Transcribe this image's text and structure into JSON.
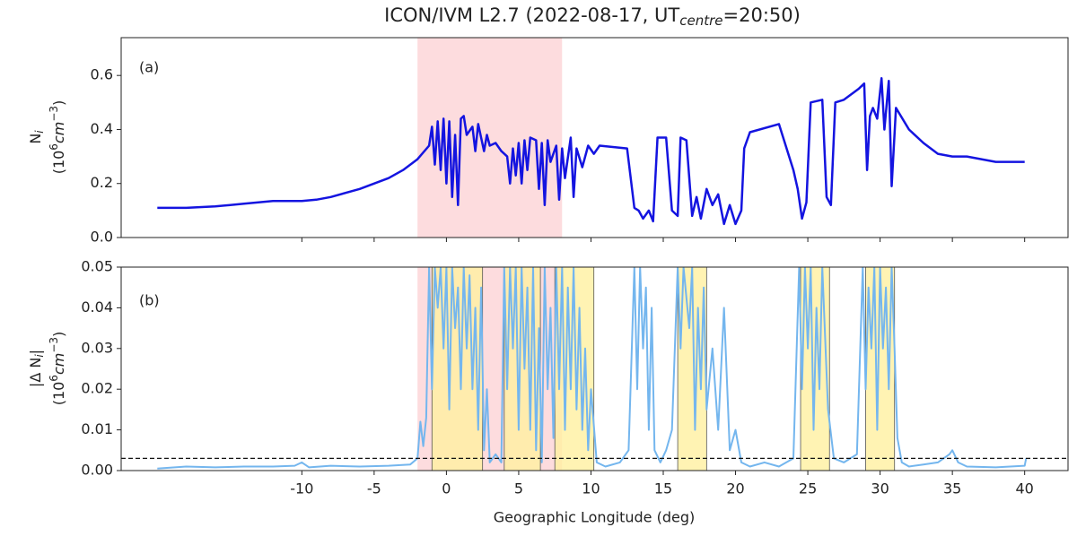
{
  "chart_data": [
    {
      "type": "line",
      "title_parts": [
        "ICON/IVM L2.7 (2022-08-17, UT",
        "centre",
        "=20:50)"
      ],
      "annotation": "(a)",
      "ylabel_parts": [
        [
          "N",
          "i"
        ],
        [
          "(10",
          "6",
          "cm",
          "−3",
          ")"
        ]
      ],
      "xlim": [
        -22.5,
        43
      ],
      "xticks": [
        -10,
        -5,
        0,
        5,
        10,
        15,
        20,
        25,
        30,
        35,
        40
      ],
      "xtick_labels": false,
      "ylim": [
        0,
        0.74
      ],
      "yticks": [
        {
          "value": 0,
          "label": "0.0"
        },
        0.2,
        0.4,
        0.6
      ],
      "highlight_spans": [
        [
          -2,
          8
        ]
      ],
      "highlight_color": "#fcc4c8",
      "color": "#1414e0",
      "x": [
        -20,
        -18,
        -16,
        -14,
        -12,
        -10,
        -9,
        -8,
        -6,
        -4,
        -3,
        -2,
        -1.2,
        -1,
        -0.8,
        -0.6,
        -0.4,
        -0.2,
        0,
        0.2,
        0.4,
        0.6,
        0.8,
        1.0,
        1.2,
        1.4,
        1.8,
        2.0,
        2.2,
        2.6,
        2.8,
        3.0,
        3.4,
        3.8,
        4.2,
        4.4,
        4.6,
        4.8,
        5.0,
        5.2,
        5.4,
        5.6,
        5.8,
        6.2,
        6.4,
        6.6,
        6.8,
        7.0,
        7.2,
        7.6,
        7.8,
        8.0,
        8.2,
        8.6,
        8.8,
        9.0,
        9.4,
        9.8,
        10.2,
        10.6,
        12.5,
        13,
        13.3,
        13.6,
        14,
        14.3,
        14.6,
        15.2,
        15.6,
        16,
        16.2,
        16.6,
        17,
        17.3,
        17.6,
        18,
        18.4,
        18.8,
        19.2,
        19.6,
        20,
        20.4,
        20.6,
        21,
        23,
        24,
        24.3,
        24.6,
        24.9,
        25.2,
        26,
        26.3,
        26.6,
        26.9,
        27.5,
        28.5,
        28.9,
        29.1,
        29.3,
        29.5,
        29.8,
        30.1,
        30.3,
        30.6,
        30.8,
        31.1,
        32,
        33,
        34,
        35,
        36,
        37,
        38,
        40
      ],
      "values": [
        0.11,
        0.11,
        0.115,
        0.125,
        0.135,
        0.135,
        0.14,
        0.15,
        0.18,
        0.22,
        0.25,
        0.29,
        0.34,
        0.41,
        0.27,
        0.43,
        0.25,
        0.44,
        0.2,
        0.43,
        0.15,
        0.38,
        0.12,
        0.44,
        0.45,
        0.38,
        0.41,
        0.32,
        0.42,
        0.32,
        0.38,
        0.34,
        0.35,
        0.32,
        0.3,
        0.2,
        0.33,
        0.23,
        0.35,
        0.2,
        0.36,
        0.25,
        0.37,
        0.36,
        0.18,
        0.35,
        0.12,
        0.36,
        0.28,
        0.34,
        0.14,
        0.33,
        0.22,
        0.37,
        0.15,
        0.33,
        0.26,
        0.34,
        0.31,
        0.34,
        0.33,
        0.11,
        0.1,
        0.07,
        0.1,
        0.06,
        0.37,
        0.37,
        0.1,
        0.08,
        0.37,
        0.36,
        0.08,
        0.15,
        0.07,
        0.18,
        0.12,
        0.16,
        0.05,
        0.12,
        0.05,
        0.1,
        0.33,
        0.39,
        0.42,
        0.25,
        0.18,
        0.07,
        0.13,
        0.5,
        0.51,
        0.15,
        0.12,
        0.5,
        0.51,
        0.55,
        0.57,
        0.25,
        0.45,
        0.48,
        0.44,
        0.59,
        0.4,
        0.58,
        0.19,
        0.48,
        0.4,
        0.35,
        0.31,
        0.3,
        0.3,
        0.29,
        0.28,
        0.28
      ]
    },
    {
      "type": "line",
      "annotation": "(b)",
      "ylabel_parts": [
        [
          "|Δ N",
          "i",
          "|"
        ],
        [
          "(10",
          "6",
          "cm",
          "−3",
          ")"
        ]
      ],
      "xlabel": "Geographic Longitude (deg)",
      "xlim": [
        -22.5,
        43
      ],
      "xticks": [
        -10,
        -5,
        0,
        5,
        10,
        15,
        20,
        25,
        30,
        35,
        40
      ],
      "xtick_labels": true,
      "ylim": [
        0,
        0.05
      ],
      "yticks": [
        {
          "value": 0,
          "label": "0.00"
        },
        {
          "value": 0.01,
          "label": "0.01"
        },
        {
          "value": 0.02,
          "label": "0.02"
        },
        {
          "value": 0.03,
          "label": "0.03"
        },
        {
          "value": 0.04,
          "label": "0.04"
        },
        {
          "value": 0.05,
          "label": "0.05"
        }
      ],
      "threshold": 0.003,
      "highlight_spans": [
        [
          -2,
          8
        ]
      ],
      "highlight_color": "#fcc4c8",
      "yellow_spans": [
        [
          -1,
          2.5
        ],
        [
          4,
          6.5
        ],
        [
          7.5,
          10.2
        ],
        [
          16,
          18
        ],
        [
          24.5,
          26.5
        ],
        [
          29,
          31
        ]
      ],
      "yellow_color": "#fff0a0",
      "color": "#74b6ee",
      "x": [
        -20,
        -18,
        -16,
        -14,
        -12,
        -10.5,
        -10,
        -9.5,
        -8,
        -6,
        -4,
        -2.5,
        -2,
        -1.8,
        -1.6,
        -1.4,
        -1.2,
        -1,
        -0.8,
        -0.6,
        -0.4,
        -0.2,
        0,
        0.2,
        0.4,
        0.6,
        0.8,
        1.0,
        1.2,
        1.4,
        1.6,
        1.8,
        2.0,
        2.2,
        2.4,
        2.6,
        2.8,
        3.0,
        3.4,
        3.8,
        4.0,
        4.2,
        4.4,
        4.6,
        4.8,
        5.0,
        5.2,
        5.4,
        5.6,
        5.8,
        6.0,
        6.2,
        6.4,
        6.6,
        6.8,
        7.0,
        7.2,
        7.4,
        7.6,
        7.8,
        8.0,
        8.2,
        8.4,
        8.6,
        8.8,
        9.0,
        9.2,
        9.4,
        9.6,
        9.8,
        10.0,
        10.4,
        11,
        12,
        12.6,
        13,
        13.2,
        13.4,
        13.6,
        13.8,
        14,
        14.2,
        14.4,
        14.8,
        15.2,
        15.6,
        16,
        16.2,
        16.4,
        16.8,
        17,
        17.2,
        17.4,
        17.6,
        17.8,
        18,
        18.4,
        18.8,
        19.2,
        19.6,
        20,
        20.4,
        21,
        22,
        23,
        24,
        24.4,
        24.6,
        24.8,
        25,
        25.2,
        25.4,
        25.6,
        25.8,
        26,
        26.4,
        26.8,
        27.5,
        28.4,
        28.8,
        29,
        29.2,
        29.4,
        29.6,
        29.8,
        30,
        30.2,
        30.4,
        30.6,
        30.8,
        31,
        31.2,
        31.5,
        32,
        33,
        34,
        34.8,
        35,
        35.4,
        36,
        38,
        40,
        40.1
      ],
      "values": [
        0.0005,
        0.001,
        0.0008,
        0.001,
        0.001,
        0.0012,
        0.002,
        0.0008,
        0.0012,
        0.001,
        0.0012,
        0.0015,
        0.003,
        0.012,
        0.006,
        0.013,
        0.05,
        0.02,
        0.05,
        0.04,
        0.05,
        0.03,
        0.05,
        0.015,
        0.05,
        0.035,
        0.045,
        0.02,
        0.05,
        0.03,
        0.048,
        0.02,
        0.04,
        0.01,
        0.045,
        0.005,
        0.02,
        0.002,
        0.004,
        0.002,
        0.05,
        0.02,
        0.05,
        0.03,
        0.05,
        0.01,
        0.05,
        0.025,
        0.045,
        0.01,
        0.05,
        0.005,
        0.035,
        0.002,
        0.05,
        0.02,
        0.04,
        0.008,
        0.05,
        0.02,
        0.05,
        0.01,
        0.045,
        0.02,
        0.05,
        0.015,
        0.04,
        0.01,
        0.03,
        0.005,
        0.02,
        0.002,
        0.001,
        0.002,
        0.005,
        0.05,
        0.02,
        0.05,
        0.03,
        0.045,
        0.01,
        0.04,
        0.005,
        0.002,
        0.005,
        0.01,
        0.05,
        0.03,
        0.05,
        0.035,
        0.05,
        0.01,
        0.04,
        0.02,
        0.045,
        0.015,
        0.03,
        0.01,
        0.04,
        0.005,
        0.01,
        0.002,
        0.001,
        0.002,
        0.001,
        0.003,
        0.05,
        0.02,
        0.05,
        0.03,
        0.05,
        0.01,
        0.04,
        0.02,
        0.05,
        0.015,
        0.003,
        0.002,
        0.004,
        0.05,
        0.02,
        0.045,
        0.03,
        0.05,
        0.01,
        0.05,
        0.03,
        0.045,
        0.02,
        0.05,
        0.03,
        0.008,
        0.002,
        0.001,
        0.0015,
        0.002,
        0.004,
        0.005,
        0.002,
        0.001,
        0.0008,
        0.0012,
        0.003
      ]
    }
  ]
}
